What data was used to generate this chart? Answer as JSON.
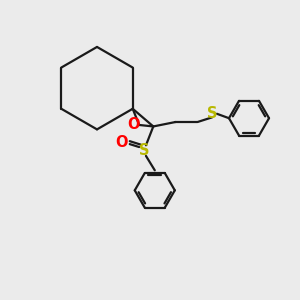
{
  "bg_color": "#ebebeb",
  "bond_color": "#1a1a1a",
  "O_color": "#ff0000",
  "S_color": "#b8b800",
  "line_width": 1.6,
  "font_size_atom": 10.5,
  "xlim": [
    0,
    10
  ],
  "ylim": [
    0,
    10
  ]
}
